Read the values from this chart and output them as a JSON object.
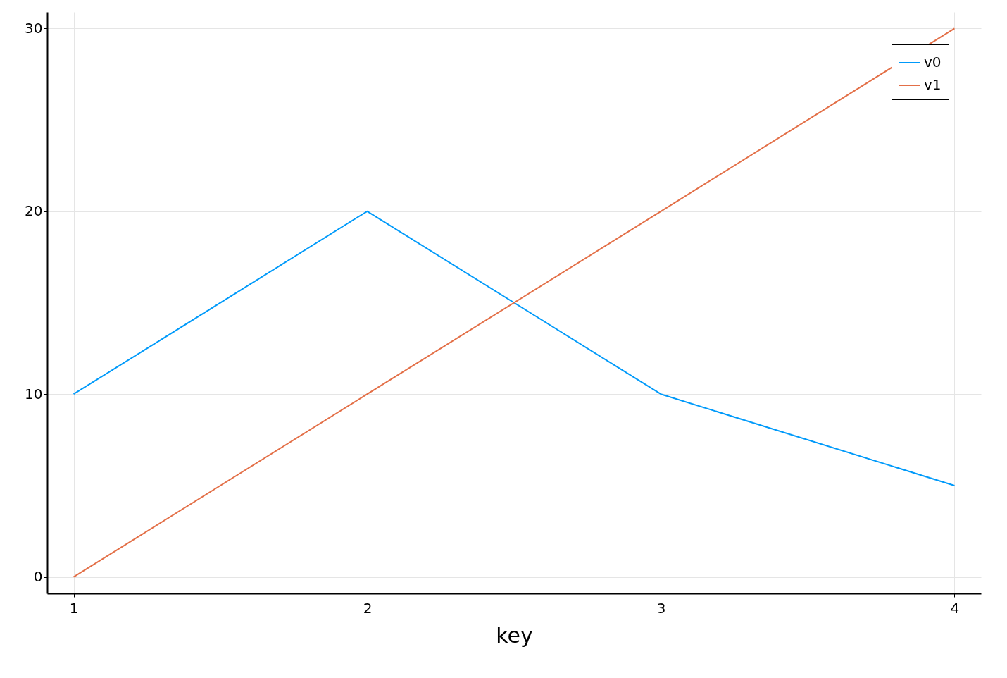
{
  "chart_data": {
    "type": "line",
    "xlabel": "key",
    "x": [
      1,
      2,
      3,
      4
    ],
    "series": [
      {
        "name": "v0",
        "color": "#009afa",
        "values": [
          10,
          20,
          10,
          5
        ]
      },
      {
        "name": "v1",
        "color": "#e36f47",
        "values": [
          0,
          10,
          20,
          30
        ]
      }
    ],
    "xlim": [
      0.91,
      4.09
    ],
    "xticks": [
      1,
      2,
      3,
      4
    ],
    "ylim": [
      -0.9,
      30.9
    ],
    "yticks": [
      0,
      10,
      20,
      30
    ],
    "grid": true,
    "legend": "top right",
    "marker": "none",
    "line_style": "solid"
  }
}
